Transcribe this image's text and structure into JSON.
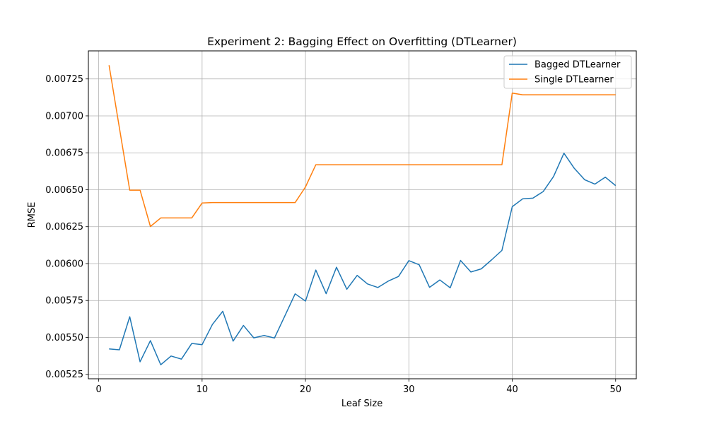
{
  "chart_data": {
    "type": "line",
    "title": "Experiment 2: Bagging Effect on Overfitting (DTLearner)",
    "xlabel": "Leaf Size",
    "ylabel": "RMSE",
    "xlim": [
      -1,
      52
    ],
    "ylim": [
      0.00522,
      0.00744
    ],
    "xticks": [
      0,
      10,
      20,
      30,
      40,
      50
    ],
    "yticks": [
      0.00525,
      0.0055,
      0.00575,
      0.006,
      0.00625,
      0.0065,
      0.00675,
      0.007,
      0.00725
    ],
    "ytick_labels": [
      "0.00525",
      "0.00550",
      "0.00575",
      "0.00600",
      "0.00625",
      "0.00650",
      "0.00675",
      "0.00700",
      "0.00725"
    ],
    "grid": true,
    "legend_position": "top-right",
    "x": [
      1,
      2,
      3,
      4,
      5,
      6,
      7,
      8,
      9,
      10,
      11,
      12,
      13,
      14,
      15,
      16,
      17,
      18,
      19,
      20,
      21,
      22,
      23,
      24,
      25,
      26,
      27,
      28,
      29,
      30,
      31,
      32,
      33,
      34,
      35,
      36,
      37,
      38,
      39,
      40,
      41,
      42,
      43,
      44,
      45,
      46,
      47,
      48,
      49,
      50
    ],
    "series": [
      {
        "name": "Bagged DTLearner",
        "color": "#1f77b4",
        "values": [
          0.005422,
          0.005416,
          0.00564,
          0.005335,
          0.005478,
          0.005315,
          0.005374,
          0.005353,
          0.005459,
          0.005451,
          0.005588,
          0.005677,
          0.005475,
          0.005581,
          0.005497,
          0.005513,
          0.005496,
          0.005645,
          0.005795,
          0.005746,
          0.005956,
          0.005796,
          0.005975,
          0.005826,
          0.00592,
          0.005862,
          0.005838,
          0.005881,
          0.005913,
          0.00602,
          0.005992,
          0.005839,
          0.005889,
          0.005836,
          0.006021,
          0.005943,
          0.005964,
          0.006025,
          0.006089,
          0.006385,
          0.006438,
          0.006443,
          0.006488,
          0.00659,
          0.006747,
          0.006645,
          0.006568,
          0.006538,
          0.006585,
          0.006528
        ]
      },
      {
        "name": "Single DTLearner",
        "color": "#ff7f0e",
        "values": [
          0.007343,
          0.006919,
          0.006497,
          0.006497,
          0.006251,
          0.006309,
          0.006309,
          0.006309,
          0.006309,
          0.00641,
          0.006413,
          0.006413,
          0.006413,
          0.006413,
          0.006413,
          0.006413,
          0.006413,
          0.006413,
          0.006413,
          0.006519,
          0.006669,
          0.006669,
          0.006669,
          0.006669,
          0.006669,
          0.006669,
          0.006669,
          0.006669,
          0.006669,
          0.006669,
          0.006669,
          0.006669,
          0.006669,
          0.006669,
          0.006669,
          0.006669,
          0.006669,
          0.006669,
          0.006669,
          0.007154,
          0.007143,
          0.007143,
          0.007143,
          0.007143,
          0.007143,
          0.007143,
          0.007143,
          0.007143,
          0.007143,
          0.007143
        ]
      }
    ]
  }
}
